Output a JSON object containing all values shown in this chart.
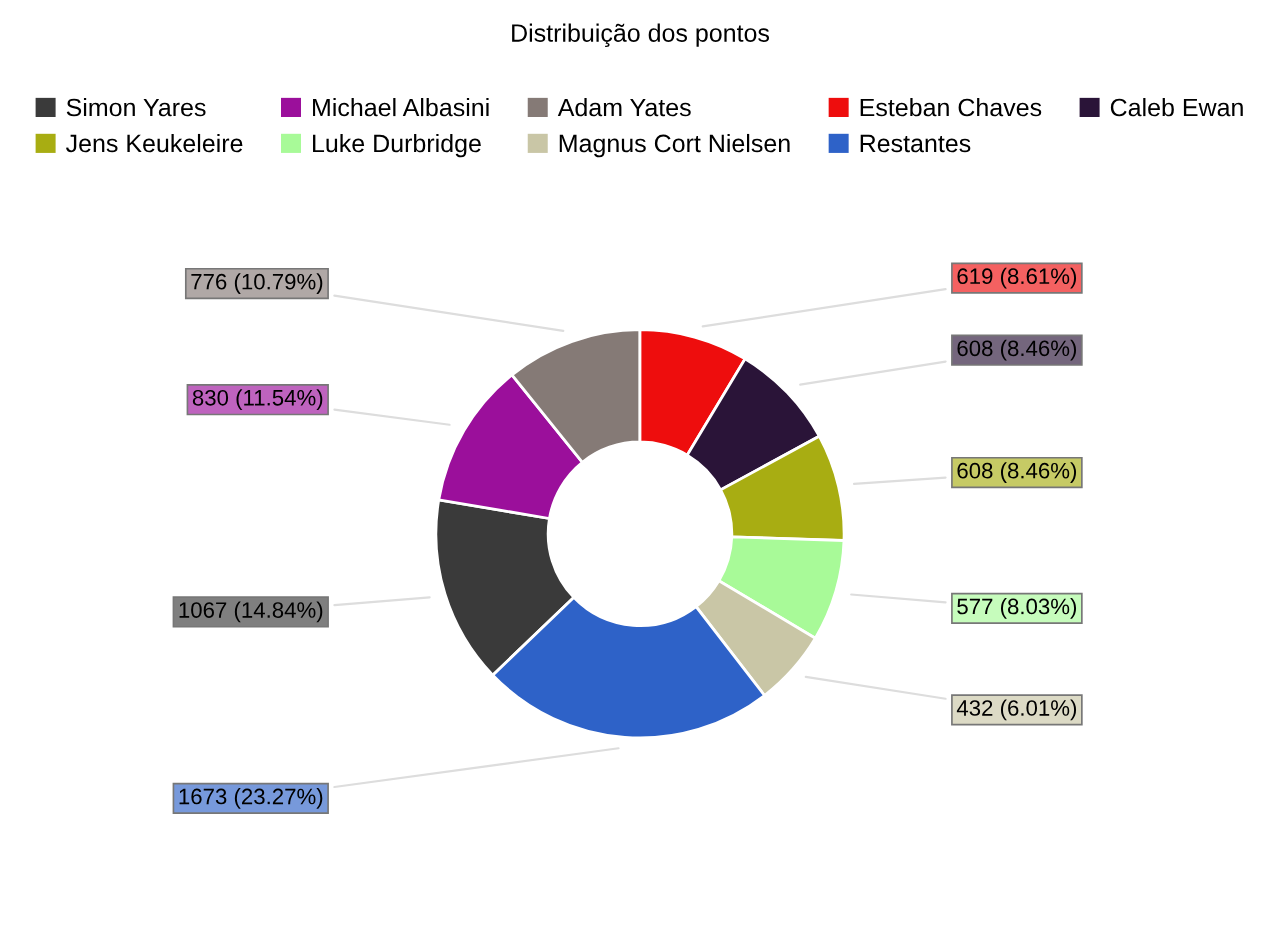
{
  "chart_data": {
    "type": "donut",
    "title": "Distribuição dos pontos",
    "categories": [
      "Simon Yares",
      "Michael Albasini",
      "Adam Yates",
      "Esteban Chaves",
      "Caleb Ewan",
      "Jens Keukeleire",
      "Luke Durbridge",
      "Magnus Cort Nielsen",
      "Restantes"
    ],
    "values": [
      1067,
      830,
      776,
      619,
      608,
      608,
      577,
      432,
      1673
    ],
    "colors": [
      "#3a3a3a",
      "#9b0f9b",
      "#857a76",
      "#ee0d0d",
      "#2a1438",
      "#a8ad12",
      "#a8fa98",
      "#c9c6a6",
      "#2e62c8"
    ],
    "value_labels": [
      "1067 (14.84%)",
      "830 (11.54%)",
      "776 (10.79%)",
      "619 (8.61%)",
      "608 (8.46%)",
      "608 (8.46%)",
      "577 (8.03%)",
      "432 (6.01%)",
      "1673 (23.27%)"
    ],
    "legend": "top"
  }
}
